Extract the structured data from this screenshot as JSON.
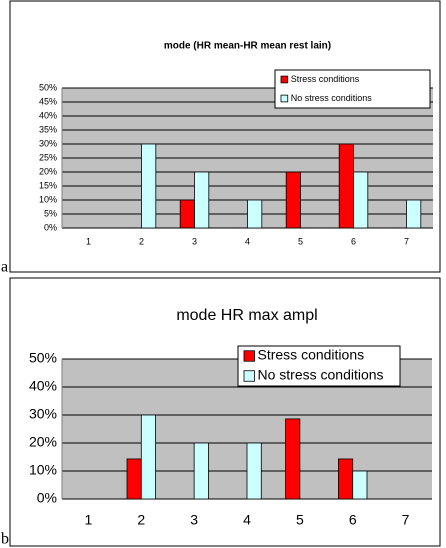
{
  "chart_data": [
    {
      "type": "bar",
      "label": "a",
      "title": "mode (HR mean-HR mean rest lain)",
      "categories": [
        "1",
        "2",
        "3",
        "4",
        "5",
        "6",
        "7"
      ],
      "series": [
        {
          "name": "Stress conditions",
          "color": "#ff0000",
          "values": [
            0,
            0,
            10,
            0,
            20,
            30,
            0
          ]
        },
        {
          "name": "No stress conditions",
          "color": "#ccffff",
          "values": [
            0,
            30,
            20,
            10,
            0,
            20,
            10
          ]
        }
      ],
      "ylim": [
        0,
        50
      ],
      "yticks": [
        {
          "value": 0,
          "label": "0%"
        },
        {
          "value": 5,
          "label": "5%"
        },
        {
          "value": 10,
          "label": "10%"
        },
        {
          "value": 15,
          "label": "15%"
        },
        {
          "value": 20,
          "label": "20%"
        },
        {
          "value": 25,
          "label": "25%"
        },
        {
          "value": 30,
          "label": "30%"
        },
        {
          "value": 35,
          "label": "35%"
        },
        {
          "value": 40,
          "label": "40%"
        },
        {
          "value": 45,
          "label": "45%"
        },
        {
          "value": 50,
          "label": "50%"
        }
      ],
      "grid": true,
      "legend": "upper right"
    },
    {
      "type": "bar",
      "label": "b",
      "title": "mode HR max ampl",
      "categories": [
        "1",
        "2",
        "3",
        "4",
        "5",
        "6",
        "7"
      ],
      "series": [
        {
          "name": "Stress conditions",
          "color": "#ff0000",
          "values": [
            0,
            14.3,
            0,
            0,
            28.6,
            14.3,
            0
          ]
        },
        {
          "name": "No stress conditions",
          "color": "#ccffff",
          "values": [
            0,
            30,
            20,
            20,
            0,
            10,
            0
          ]
        }
      ],
      "ylim": [
        0,
        50
      ],
      "yticks": [
        {
          "value": 0,
          "label": "0%"
        },
        {
          "value": 10,
          "label": "10%"
        },
        {
          "value": 20,
          "label": "20%"
        },
        {
          "value": 30,
          "label": "30%"
        },
        {
          "value": 40,
          "label": "40%"
        },
        {
          "value": 50,
          "label": "50%"
        }
      ],
      "grid": true,
      "legend": "upper right"
    }
  ]
}
